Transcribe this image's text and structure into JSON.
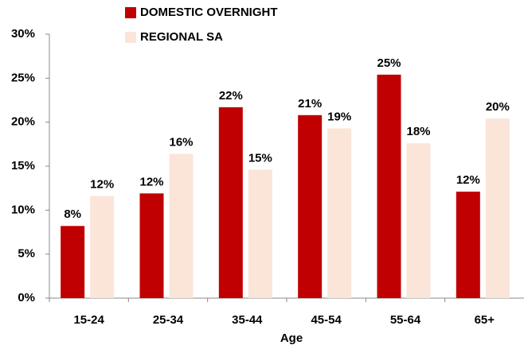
{
  "chart_data": {
    "type": "bar",
    "x_label": "Age",
    "categories": [
      "15-24",
      "25-34",
      "35-44",
      "45-54",
      "55-64",
      "65+"
    ],
    "series": [
      {
        "name": "DOMESTIC OVERNIGHT",
        "color": "#c00000",
        "values": [
          8.2,
          11.9,
          21.7,
          20.8,
          25.4,
          12.1
        ],
        "value_labels": [
          "8%",
          "12%",
          "22%",
          "21%",
          "25%",
          "12%"
        ]
      },
      {
        "name": "REGIONAL SA",
        "color": "#fbe5d9",
        "values": [
          11.6,
          16.4,
          14.6,
          19.3,
          17.6,
          20.4
        ],
        "value_labels": [
          "12%",
          "16%",
          "15%",
          "19%",
          "18%",
          "20%"
        ]
      }
    ],
    "ylim": [
      0,
      30
    ],
    "yticks": [
      {
        "value": 0,
        "label": "0%"
      },
      {
        "value": 5,
        "label": "5%"
      },
      {
        "value": 10,
        "label": "10%"
      },
      {
        "value": 15,
        "label": "15%"
      },
      {
        "value": 20,
        "label": "20%"
      },
      {
        "value": 25,
        "label": "25%"
      },
      {
        "value": 30,
        "label": "30%"
      }
    ],
    "legend": "top"
  }
}
